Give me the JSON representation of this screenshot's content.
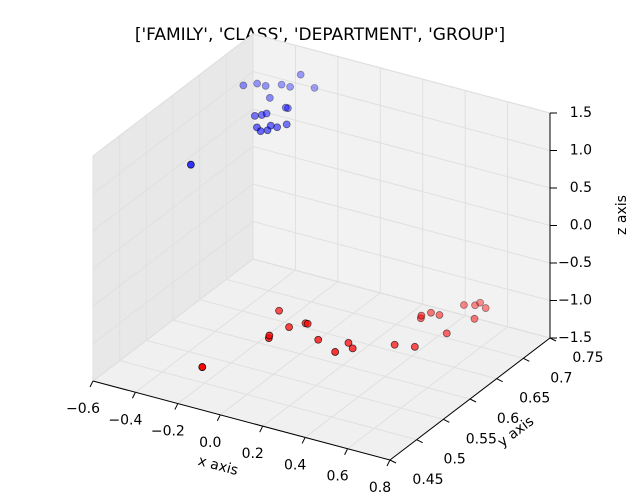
{
  "chart_data": {
    "type": "scatter3d",
    "title": "['FAMILY', 'CLASS', 'DEPARTMENT', 'GROUP']",
    "x_label": "x axis",
    "y_label": "y axis",
    "z_label": "z axis",
    "xlim": [
      -0.6,
      0.8
    ],
    "ylim": [
      0.45,
      0.75
    ],
    "zlim": [
      -1.5,
      1.5
    ],
    "xticks": [
      {
        "value": -0.6,
        "label": "−0.6"
      },
      {
        "value": -0.4,
        "label": "−0.4"
      },
      {
        "value": -0.2,
        "label": "−0.2"
      },
      {
        "value": 0,
        "label": "0.0"
      },
      0.2,
      0.4,
      0.6,
      0.8
    ],
    "yticks": [
      0.45,
      0.5,
      0.55,
      0.6,
      0.65,
      0.7,
      0.75
    ],
    "zticks": [
      {
        "value": -1.5,
        "label": "−1.5"
      },
      {
        "value": -1,
        "label": "−1.0"
      },
      {
        "value": -0.5,
        "label": "−0.5"
      },
      {
        "value": 0,
        "label": "0.0"
      },
      0.5,
      {
        "value": 1,
        "label": "1.0"
      },
      1.5
    ],
    "grid": true,
    "series": [
      {
        "color": "#0000ff",
        "x": [
          -0.39,
          -0.57,
          -0.53,
          -0.49,
          -0.44,
          -0.35,
          -0.31,
          -0.4,
          -0.42,
          -0.31,
          -0.32,
          -0.37,
          -0.33,
          -0.26,
          -0.24,
          -0.39,
          -0.3,
          -0.28,
          -0.36,
          -0.29
        ],
        "y": [
          0.55,
          0.72,
          0.73,
          0.73,
          0.74,
          0.74,
          0.75,
          0.74,
          0.71,
          0.7,
          0.7,
          0.675,
          0.65,
          0.66,
          0.67,
          0.67,
          0.645,
          0.65,
          0.68,
          0.66
        ],
        "z": [
          1,
          1,
          1,
          1,
          1,
          1.2,
          1,
          1,
          1,
          1,
          1,
          1,
          1,
          1,
          1,
          1,
          1,
          1,
          1,
          1
        ]
      },
      {
        "color": "#ff0000",
        "x": [
          -0.11,
          -0.01,
          -0.02,
          -0.1,
          0.01,
          0.05,
          0.06,
          0.17,
          0.285,
          0.29,
          0.33,
          0.46,
          0.54,
          0.43,
          0.42,
          0.44,
          0.48,
          0.59,
          0.52,
          0.56,
          0.566,
          0.62,
          0.61
        ],
        "y": [
          0.46,
          0.545,
          0.55,
          0.6,
          0.575,
          0.59,
          0.59,
          0.566,
          0.552,
          0.575,
          0.567,
          0.594,
          0.6,
          0.655,
          0.66,
          0.67,
          0.67,
          0.64,
          0.7,
          0.705,
          0.712,
          0.68,
          0.705
        ],
        "z": [
          -1,
          -1,
          -1,
          -1,
          -1,
          -1,
          -1,
          -1,
          -1,
          -1,
          -1,
          -1,
          -1,
          -1,
          -1,
          -1,
          -1,
          -1,
          -1,
          -1,
          -1,
          -1,
          -1
        ]
      }
    ]
  }
}
